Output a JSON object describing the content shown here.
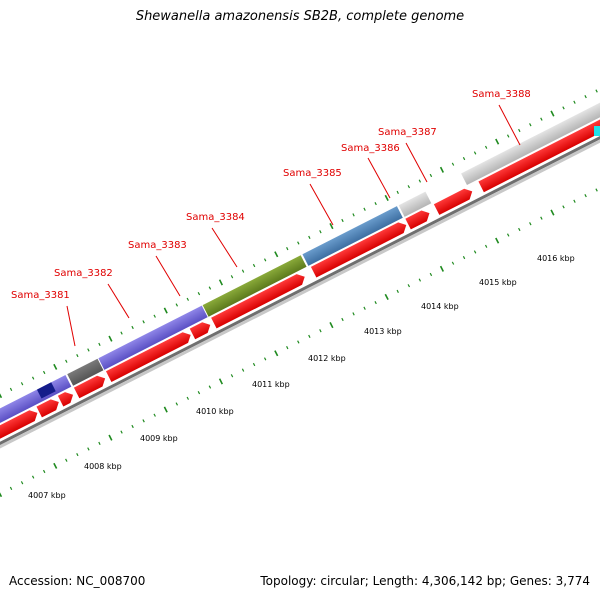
{
  "title": "Shewanella amazonensis SB2B, complete genome",
  "footer": {
    "accession": "Accession: NC_008700",
    "summary": "Topology: circular; Length: 4,306,142 bp; Genes: 3,774"
  },
  "colors": {
    "cds_arrow": "#ff0000",
    "backbone": "#808080",
    "tick": "#1f8a1f",
    "label": "#e00000"
  },
  "gene_labels": [
    "Sama_3381",
    "Sama_3382",
    "Sama_3383",
    "Sama_3384",
    "Sama_3385",
    "Sama_3386",
    "Sama_3387",
    "Sama_3388"
  ],
  "kbp_labels": [
    "4007 kbp",
    "4008 kbp",
    "4009 kbp",
    "4010 kbp",
    "4011 kbp",
    "4012 kbp",
    "4013 kbp",
    "4014 kbp",
    "4015 kbp",
    "4016 kbp"
  ]
}
